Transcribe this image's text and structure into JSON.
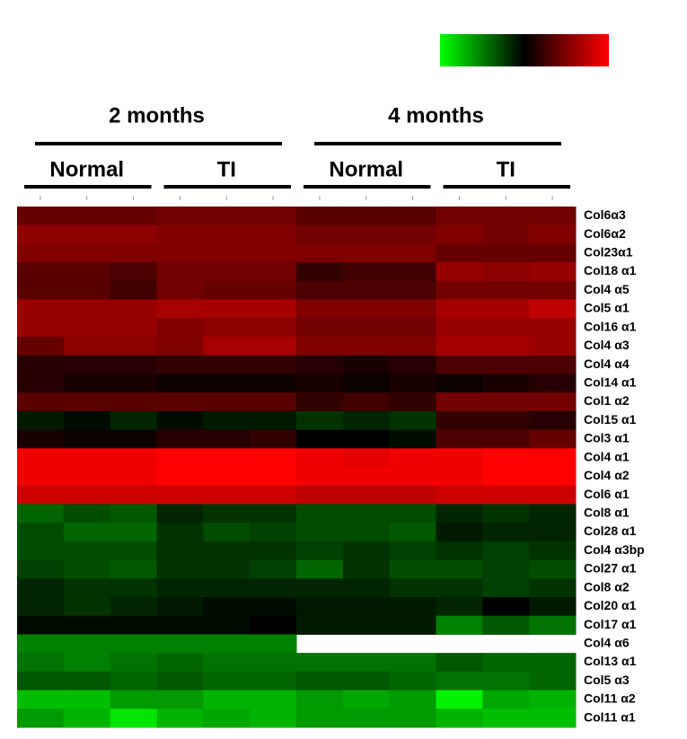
{
  "chart_data": {
    "type": "heatmap",
    "zlim": [
      -1,
      1
    ],
    "colors": [
      "#00ff00",
      "#000000",
      "#ff0000"
    ],
    "column_groups": [
      {
        "name": "2 months",
        "subgroups": [
          {
            "name": "Normal"
          },
          {
            "name": "TI"
          }
        ]
      },
      {
        "name": "4 months",
        "subgroups": [
          {
            "name": "Normal"
          },
          {
            "name": "TI"
          }
        ]
      }
    ],
    "rows": [
      "Col6α3",
      "Col6α2",
      "Col23α1",
      "Col18 α1",
      "Col4 α5",
      "Col5 α1",
      "Col16 α1",
      "Col4 α3",
      "Col4 α4",
      "Col14 α1",
      "Col1 α2",
      "Col15 α1",
      "Col3 α1",
      "Col4 α1",
      "Col4 α2",
      "Col6 α1",
      "Col8 α1",
      "Col28 α1",
      "Col4 α3bp",
      "Col27 α1",
      "Col8 α2",
      "Col20 α1",
      "Col17 α1",
      "Col4 α6",
      "Col13 α1",
      "Col5 α3",
      "Col11 α2",
      "Col11 α1"
    ],
    "values": [
      [
        0.4,
        0.4,
        0.4,
        0.45,
        0.45,
        0.45,
        0.35,
        0.35,
        0.35,
        0.45,
        0.45,
        0.45
      ],
      [
        0.55,
        0.55,
        0.55,
        0.5,
        0.5,
        0.5,
        0.45,
        0.45,
        0.45,
        0.5,
        0.45,
        0.5
      ],
      [
        0.5,
        0.5,
        0.5,
        0.5,
        0.5,
        0.5,
        0.5,
        0.5,
        0.5,
        0.4,
        0.4,
        0.4
      ],
      [
        0.35,
        0.35,
        0.3,
        0.45,
        0.45,
        0.45,
        0.2,
        0.25,
        0.25,
        0.6,
        0.55,
        0.6
      ],
      [
        0.35,
        0.35,
        0.25,
        0.45,
        0.4,
        0.4,
        0.3,
        0.3,
        0.3,
        0.45,
        0.45,
        0.45
      ],
      [
        0.6,
        0.6,
        0.6,
        0.65,
        0.65,
        0.65,
        0.5,
        0.5,
        0.5,
        0.65,
        0.65,
        0.75
      ],
      [
        0.6,
        0.6,
        0.6,
        0.5,
        0.55,
        0.55,
        0.45,
        0.45,
        0.45,
        0.6,
        0.6,
        0.6
      ],
      [
        0.4,
        0.55,
        0.55,
        0.5,
        0.65,
        0.65,
        0.5,
        0.5,
        0.5,
        0.65,
        0.65,
        0.6
      ],
      [
        0.15,
        0.15,
        0.15,
        0.2,
        0.2,
        0.2,
        0.15,
        0.1,
        0.15,
        0.3,
        0.3,
        0.3
      ],
      [
        0.15,
        0.1,
        0.1,
        0.05,
        0.05,
        0.05,
        0.1,
        0.05,
        0.1,
        0.05,
        0.1,
        0.15
      ],
      [
        0.35,
        0.35,
        0.35,
        0.35,
        0.35,
        0.35,
        0.2,
        0.25,
        0.2,
        0.45,
        0.45,
        0.45
      ],
      [
        -0.1,
        -0.05,
        -0.15,
        -0.05,
        -0.1,
        -0.1,
        -0.2,
        -0.15,
        -0.2,
        0.2,
        0.2,
        0.15
      ],
      [
        0.1,
        0.05,
        0.05,
        0.15,
        0.15,
        0.2,
        0,
        0,
        -0.05,
        0.3,
        0.3,
        0.4
      ],
      [
        0.95,
        0.95,
        0.95,
        1,
        1,
        1,
        0.95,
        0.9,
        0.95,
        0.95,
        1,
        1
      ],
      [
        0.95,
        0.95,
        0.95,
        1,
        1,
        1,
        0.95,
        0.95,
        0.95,
        0.95,
        1,
        1
      ],
      [
        0.8,
        0.8,
        0.8,
        0.8,
        0.8,
        0.8,
        0.75,
        0.75,
        0.75,
        0.8,
        0.8,
        0.8
      ],
      [
        -0.4,
        -0.3,
        -0.35,
        -0.15,
        -0.2,
        -0.2,
        -0.3,
        -0.3,
        -0.3,
        -0.15,
        -0.2,
        -0.15
      ],
      [
        -0.3,
        -0.4,
        -0.4,
        -0.2,
        -0.3,
        -0.25,
        -0.3,
        -0.3,
        -0.35,
        -0.1,
        -0.15,
        -0.15
      ],
      [
        -0.3,
        -0.3,
        -0.3,
        -0.2,
        -0.2,
        -0.2,
        -0.25,
        -0.2,
        -0.25,
        -0.2,
        -0.25,
        -0.2
      ],
      [
        -0.25,
        -0.3,
        -0.35,
        -0.2,
        -0.2,
        -0.25,
        -0.4,
        -0.2,
        -0.3,
        -0.3,
        -0.25,
        -0.3
      ],
      [
        -0.15,
        -0.2,
        -0.2,
        -0.15,
        -0.15,
        -0.15,
        -0.15,
        -0.15,
        -0.2,
        -0.2,
        -0.25,
        -0.2
      ],
      [
        -0.15,
        -0.2,
        -0.15,
        -0.1,
        -0.05,
        -0.05,
        -0.1,
        -0.1,
        -0.1,
        -0.15,
        0,
        -0.1
      ],
      [
        -0.05,
        -0.05,
        -0.05,
        -0.05,
        -0.05,
        0,
        -0.1,
        -0.1,
        -0.1,
        -0.5,
        -0.35,
        -0.45
      ],
      [
        -0.5,
        -0.5,
        -0.5,
        -0.5,
        -0.5,
        -0.5,
        null,
        null,
        null,
        null,
        null,
        null
      ],
      [
        -0.45,
        -0.5,
        -0.45,
        -0.4,
        -0.45,
        -0.45,
        -0.45,
        -0.45,
        -0.45,
        -0.35,
        -0.4,
        -0.4
      ],
      [
        -0.35,
        -0.35,
        -0.4,
        -0.35,
        -0.4,
        -0.4,
        -0.35,
        -0.35,
        -0.4,
        -0.45,
        -0.45,
        -0.4
      ],
      [
        -0.75,
        -0.75,
        -0.6,
        -0.6,
        -0.7,
        -0.7,
        -0.6,
        -0.65,
        -0.6,
        -0.95,
        -0.65,
        -0.7
      ],
      [
        -0.6,
        -0.7,
        -0.9,
        -0.7,
        -0.65,
        -0.7,
        -0.6,
        -0.6,
        -0.6,
        -0.7,
        -0.75,
        -0.75
      ]
    ]
  }
}
